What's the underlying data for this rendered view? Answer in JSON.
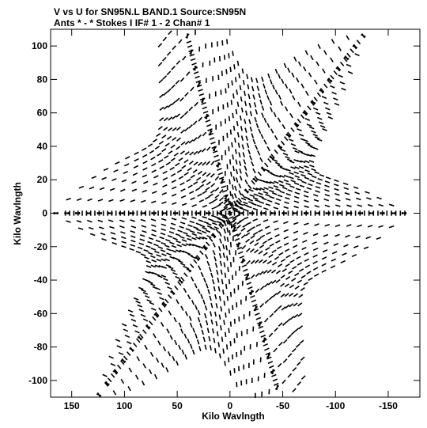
{
  "chart_data": {
    "type": "scatter",
    "title_line1": "V vs U for SN95N.L BAND.1   Source:SN95N",
    "title_line2": "Ants * - *     Stokes I   IF# 1 - 2   Chan# 1",
    "xlabel": "Kilo Wavlngth",
    "ylabel": "Kilo Wavlngth",
    "xlim": [
      170,
      -180
    ],
    "ylim": [
      -110,
      110
    ],
    "x_ticks": [
      150,
      100,
      50,
      0,
      -50,
      -100,
      -150
    ],
    "y_ticks": [
      100,
      80,
      60,
      40,
      20,
      0,
      -20,
      -40,
      -60,
      -80,
      -100
    ],
    "x_tick_labels": [
      "150",
      "100",
      "50",
      "0",
      "-50",
      "-100",
      "-150"
    ],
    "y_tick_labels": [
      "100",
      "80",
      "60",
      "40",
      "20",
      "0",
      "-20",
      "-40",
      "-60",
      "-80",
      "-100"
    ],
    "grid": false,
    "marker": "short-dash",
    "color": "#000000",
    "uv_coverage": {
      "description_of_pattern": "six-pointed star of baseline tracks",
      "arm_tips": [
        {
          "u": -125,
          "v": 105
        },
        {
          "u": -170,
          "v": 0
        },
        {
          "u": -45,
          "v": -105
        },
        {
          "u": 120,
          "v": -105
        },
        {
          "u": 160,
          "v": 0
        },
        {
          "u": 40,
          "v": 105
        }
      ],
      "tracks": {
        "num_baseline_arcs_per_arm": 16,
        "max_radius_kilo_wavelength": 165
      }
    }
  }
}
